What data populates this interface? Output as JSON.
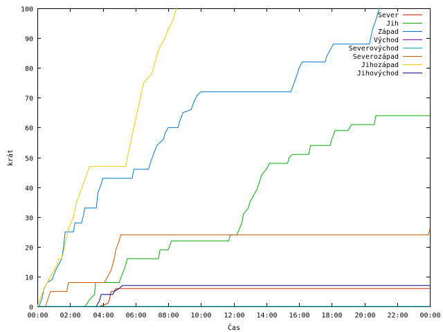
{
  "chart_data": {
    "type": "line",
    "title": "",
    "xlabel": "Čas",
    "ylabel": "krát",
    "xlim": [
      0,
      24
    ],
    "ylim": [
      0,
      100
    ],
    "x_ticks": [
      0,
      2,
      4,
      6,
      8,
      10,
      12,
      14,
      16,
      18,
      20,
      22,
      24
    ],
    "x_tick_labels": [
      "00:00",
      "02:00",
      "04:00",
      "06:00",
      "08:00",
      "10:00",
      "12:00",
      "14:00",
      "16:00",
      "18:00",
      "20:00",
      "22:00",
      "00:00"
    ],
    "y_ticks": [
      0,
      10,
      20,
      30,
      40,
      50,
      60,
      70,
      80,
      90,
      100
    ],
    "y_tick_labels": [
      "0",
      "10",
      "20",
      "30",
      "40",
      "50",
      "60",
      "70",
      "80",
      "90",
      "100"
    ],
    "grid": false,
    "legend_position": "top-right",
    "series": [
      {
        "name": "Sever",
        "color": "#cc2200",
        "points": [
          [
            3.8,
            0
          ],
          [
            4.3,
            1
          ],
          [
            4.4,
            2
          ],
          [
            4.5,
            5
          ],
          [
            4.6,
            5
          ],
          [
            4.7,
            5
          ],
          [
            4.8,
            6
          ],
          [
            5.0,
            6
          ],
          [
            24.0,
            6
          ]
        ]
      },
      {
        "name": "Jih",
        "color": "#00aa00",
        "points": [
          [
            2.9,
            0
          ],
          [
            3.05,
            1
          ],
          [
            3.15,
            2
          ],
          [
            3.3,
            3
          ],
          [
            3.5,
            4
          ],
          [
            3.55,
            8
          ],
          [
            5.0,
            8
          ],
          [
            5.2,
            11
          ],
          [
            5.35,
            13
          ],
          [
            5.5,
            16
          ],
          [
            7.4,
            16
          ],
          [
            7.5,
            19
          ],
          [
            8.0,
            19
          ],
          [
            8.2,
            22
          ],
          [
            11.7,
            22
          ],
          [
            11.8,
            24
          ],
          [
            12.2,
            24
          ],
          [
            12.5,
            28
          ],
          [
            12.6,
            31
          ],
          [
            12.9,
            33
          ],
          [
            13.0,
            35
          ],
          [
            13.2,
            37
          ],
          [
            13.4,
            39
          ],
          [
            13.6,
            42
          ],
          [
            13.7,
            44
          ],
          [
            14.0,
            46
          ],
          [
            14.2,
            48
          ],
          [
            15.3,
            48
          ],
          [
            15.4,
            50
          ],
          [
            15.6,
            51
          ],
          [
            16.6,
            51
          ],
          [
            16.7,
            54
          ],
          [
            17.9,
            54
          ],
          [
            18.0,
            56
          ],
          [
            18.2,
            59
          ],
          [
            19.0,
            59
          ],
          [
            19.2,
            61
          ],
          [
            20.6,
            61
          ],
          [
            20.7,
            64
          ],
          [
            24.0,
            64
          ]
        ]
      },
      {
        "name": "Západ",
        "color": "#0077cc",
        "points": [
          [
            0.1,
            0
          ],
          [
            0.3,
            3
          ],
          [
            0.4,
            6
          ],
          [
            0.6,
            8
          ],
          [
            0.9,
            9
          ],
          [
            1.1,
            12
          ],
          [
            1.3,
            14
          ],
          [
            1.5,
            16
          ],
          [
            1.6,
            20
          ],
          [
            1.7,
            25
          ],
          [
            2.2,
            25
          ],
          [
            2.3,
            28
          ],
          [
            2.7,
            28
          ],
          [
            2.8,
            30
          ],
          [
            2.9,
            33
          ],
          [
            3.6,
            33
          ],
          [
            3.7,
            38
          ],
          [
            3.9,
            41
          ],
          [
            4.0,
            43
          ],
          [
            5.8,
            43
          ],
          [
            5.9,
            46
          ],
          [
            6.8,
            46
          ],
          [
            6.9,
            48
          ],
          [
            7.1,
            51
          ],
          [
            7.3,
            54
          ],
          [
            7.7,
            56
          ],
          [
            7.8,
            58
          ],
          [
            8.0,
            60
          ],
          [
            8.6,
            60
          ],
          [
            8.7,
            62
          ],
          [
            8.9,
            65
          ],
          [
            9.4,
            66
          ],
          [
            9.6,
            69
          ],
          [
            9.8,
            71
          ],
          [
            10.0,
            72
          ],
          [
            15.5,
            72
          ],
          [
            15.7,
            75
          ],
          [
            15.9,
            78
          ],
          [
            16.0,
            80
          ],
          [
            16.2,
            82
          ],
          [
            17.6,
            82
          ],
          [
            17.7,
            84
          ],
          [
            17.9,
            86
          ],
          [
            18.1,
            88
          ],
          [
            20.3,
            88
          ],
          [
            20.5,
            93
          ],
          [
            20.7,
            96
          ],
          [
            20.9,
            100
          ]
        ]
      },
      {
        "name": "Východ",
        "color": "#8800aa",
        "points": [
          [
            0,
            0
          ],
          [
            24.0,
            0
          ]
        ]
      },
      {
        "name": "Severovýchod",
        "color": "#00aaaa",
        "points": [
          [
            0,
            0
          ],
          [
            24.0,
            0
          ]
        ]
      },
      {
        "name": "Severozápad",
        "color": "#cc5500",
        "points": [
          [
            0.5,
            0
          ],
          [
            0.8,
            5
          ],
          [
            1.8,
            5
          ],
          [
            1.9,
            8
          ],
          [
            4.1,
            8
          ],
          [
            4.3,
            10
          ],
          [
            4.5,
            12
          ],
          [
            4.7,
            16
          ],
          [
            4.8,
            19
          ],
          [
            5.0,
            22
          ],
          [
            5.1,
            24
          ],
          [
            23.9,
            24
          ],
          [
            24.0,
            26
          ]
        ]
      },
      {
        "name": "Jihozápad",
        "color": "#eecc00",
        "points": [
          [
            0,
            0
          ],
          [
            0.2,
            3
          ],
          [
            0.5,
            7
          ],
          [
            0.7,
            9
          ],
          [
            1.0,
            12
          ],
          [
            1.2,
            14
          ],
          [
            1.3,
            16
          ],
          [
            1.5,
            16
          ],
          [
            1.7,
            21
          ],
          [
            1.9,
            26
          ],
          [
            2.2,
            30
          ],
          [
            2.4,
            35
          ],
          [
            2.6,
            38
          ],
          [
            2.8,
            41
          ],
          [
            3.0,
            44
          ],
          [
            3.2,
            47
          ],
          [
            5.4,
            47
          ],
          [
            5.5,
            50
          ],
          [
            5.7,
            55
          ],
          [
            5.9,
            60
          ],
          [
            6.1,
            65
          ],
          [
            6.3,
            70
          ],
          [
            6.5,
            75
          ],
          [
            6.8,
            77
          ],
          [
            7.0,
            78
          ],
          [
            7.2,
            82
          ],
          [
            7.4,
            86
          ],
          [
            7.6,
            88
          ],
          [
            7.8,
            90
          ],
          [
            8.0,
            93
          ],
          [
            8.2,
            95
          ],
          [
            8.4,
            98
          ],
          [
            8.5,
            100
          ]
        ]
      },
      {
        "name": "Jihovýchod",
        "color": "#000099",
        "points": [
          [
            3.6,
            0
          ],
          [
            3.8,
            2
          ],
          [
            3.9,
            4
          ],
          [
            4.6,
            4
          ],
          [
            4.7,
            5
          ],
          [
            5.0,
            6
          ],
          [
            5.2,
            7
          ],
          [
            24.0,
            7
          ]
        ]
      }
    ]
  }
}
